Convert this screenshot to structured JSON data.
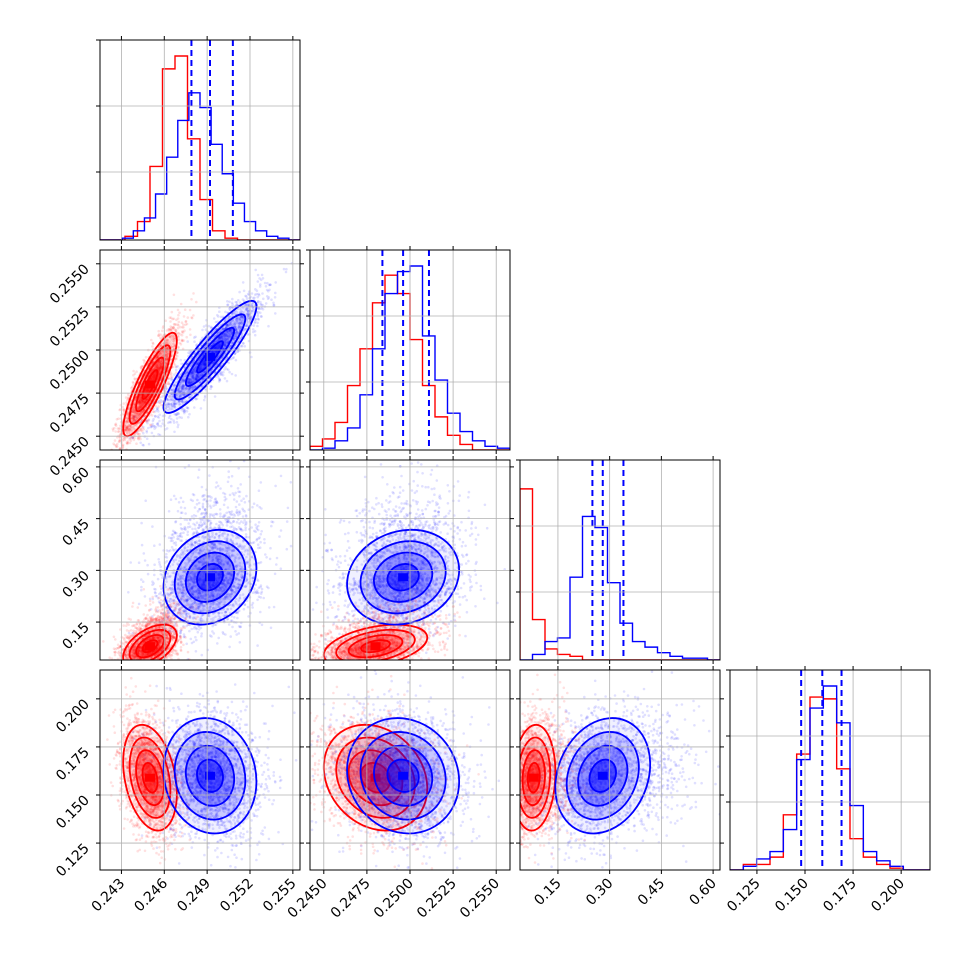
{
  "colors": {
    "series_a": "#ff0000",
    "series_b": "#0000ff",
    "grid": "#b0b0b0",
    "frame": "#000000"
  },
  "chart_data": {
    "type": "corner",
    "title": "",
    "grid": true,
    "legend": "none",
    "series": [
      {
        "color": "#ff0000",
        "means": [
          0.245,
          0.248,
          0.08,
          0.159
        ],
        "stds": [
          0.00075,
          0.0012,
          0.025,
          0.011
        ],
        "corr": [
          [
            1,
            0.85,
            0.5,
            -0.3
          ],
          [
            0.85,
            1,
            0.4,
            -0.2
          ],
          [
            0.5,
            0.4,
            1,
            0.1
          ],
          [
            -0.3,
            -0.2,
            0.1,
            1
          ]
        ]
      },
      {
        "color": "#0000ff",
        "means": [
          0.2492,
          0.2496,
          0.28,
          0.16
        ],
        "stds": [
          0.0013,
          0.0013,
          0.055,
          0.012
        ],
        "corr": [
          [
            1,
            0.9,
            0.2,
            -0.1
          ],
          [
            0.9,
            1,
            0.15,
            -0.1
          ],
          [
            0.2,
            0.15,
            1,
            0.2
          ],
          [
            -0.1,
            -0.1,
            0.2,
            1
          ]
        ]
      }
    ],
    "axes": [
      {
        "range": [
          0.2415,
          0.2555
        ],
        "ticks": [
          0.243,
          0.246,
          0.249,
          0.252,
          0.255
        ],
        "tick_labels": [
          "0.243",
          "0.246",
          "0.249",
          "0.252",
          "0.255"
        ]
      },
      {
        "range": [
          0.2442,
          0.2558
        ],
        "ticks": [
          0.245,
          0.2475,
          0.25,
          0.2525,
          0.255
        ],
        "tick_labels": [
          "0.2450",
          "0.2475",
          "0.2500",
          "0.2525",
          "0.2550"
        ]
      },
      {
        "range": [
          0.04,
          0.62
        ],
        "ticks": [
          0.15,
          0.3,
          0.45,
          0.6
        ],
        "tick_labels": [
          "0.15",
          "0.30",
          "0.45",
          "0.60"
        ]
      },
      {
        "range": [
          0.111,
          0.215
        ],
        "ticks": [
          0.125,
          0.15,
          0.175,
          0.2
        ],
        "tick_labels": [
          "0.125",
          "0.150",
          "0.175",
          "0.200"
        ]
      }
    ],
    "quantiles_series_b": [
      [
        0.2479,
        0.2492,
        0.2508
      ],
      [
        0.2484,
        0.2496,
        0.2511
      ],
      [
        0.25,
        0.28,
        0.34
      ],
      [
        0.148,
        0.159,
        0.169
      ]
    ],
    "histograms_red": [
      [
        0,
        0,
        0.02,
        0.1,
        0.4,
        0.93,
        1.0,
        0.55,
        0.22,
        0.05,
        0.01,
        0,
        0,
        0,
        0,
        0
      ],
      [
        0.02,
        0.06,
        0.15,
        0.35,
        0.55,
        0.8,
        0.95,
        0.85,
        0.6,
        0.35,
        0.18,
        0.08,
        0.03,
        0,
        0,
        0
      ],
      [
        0.93,
        0.22,
        0.06,
        0.03,
        0.02,
        0,
        0,
        0,
        0,
        0,
        0,
        0,
        0,
        0,
        0,
        0
      ],
      [
        0,
        0.03,
        0.03,
        0.07,
        0.3,
        0.63,
        0.94,
        0.93,
        0.55,
        0.17,
        0.07,
        0.03,
        0.01,
        0,
        0
      ]
    ],
    "histograms_blue": [
      [
        0,
        0,
        0.01,
        0.05,
        0.12,
        0.25,
        0.45,
        0.65,
        0.8,
        0.72,
        0.52,
        0.36,
        0.2,
        0.1,
        0.05,
        0.02,
        0.01,
        0
      ],
      [
        0,
        0.01,
        0.05,
        0.12,
        0.3,
        0.55,
        0.85,
        0.97,
        1.0,
        0.62,
        0.38,
        0.2,
        0.1,
        0.05,
        0.02,
        0.01
      ],
      [
        0,
        0.03,
        0.1,
        0.12,
        0.45,
        0.78,
        0.72,
        0.42,
        0.2,
        0.1,
        0.07,
        0.04,
        0.02,
        0.01,
        0.01,
        0
      ],
      [
        0,
        0.02,
        0.06,
        0.1,
        0.22,
        0.6,
        0.88,
        1.0,
        0.8,
        0.35,
        0.1,
        0.05,
        0.02,
        0,
        0
      ]
    ]
  }
}
